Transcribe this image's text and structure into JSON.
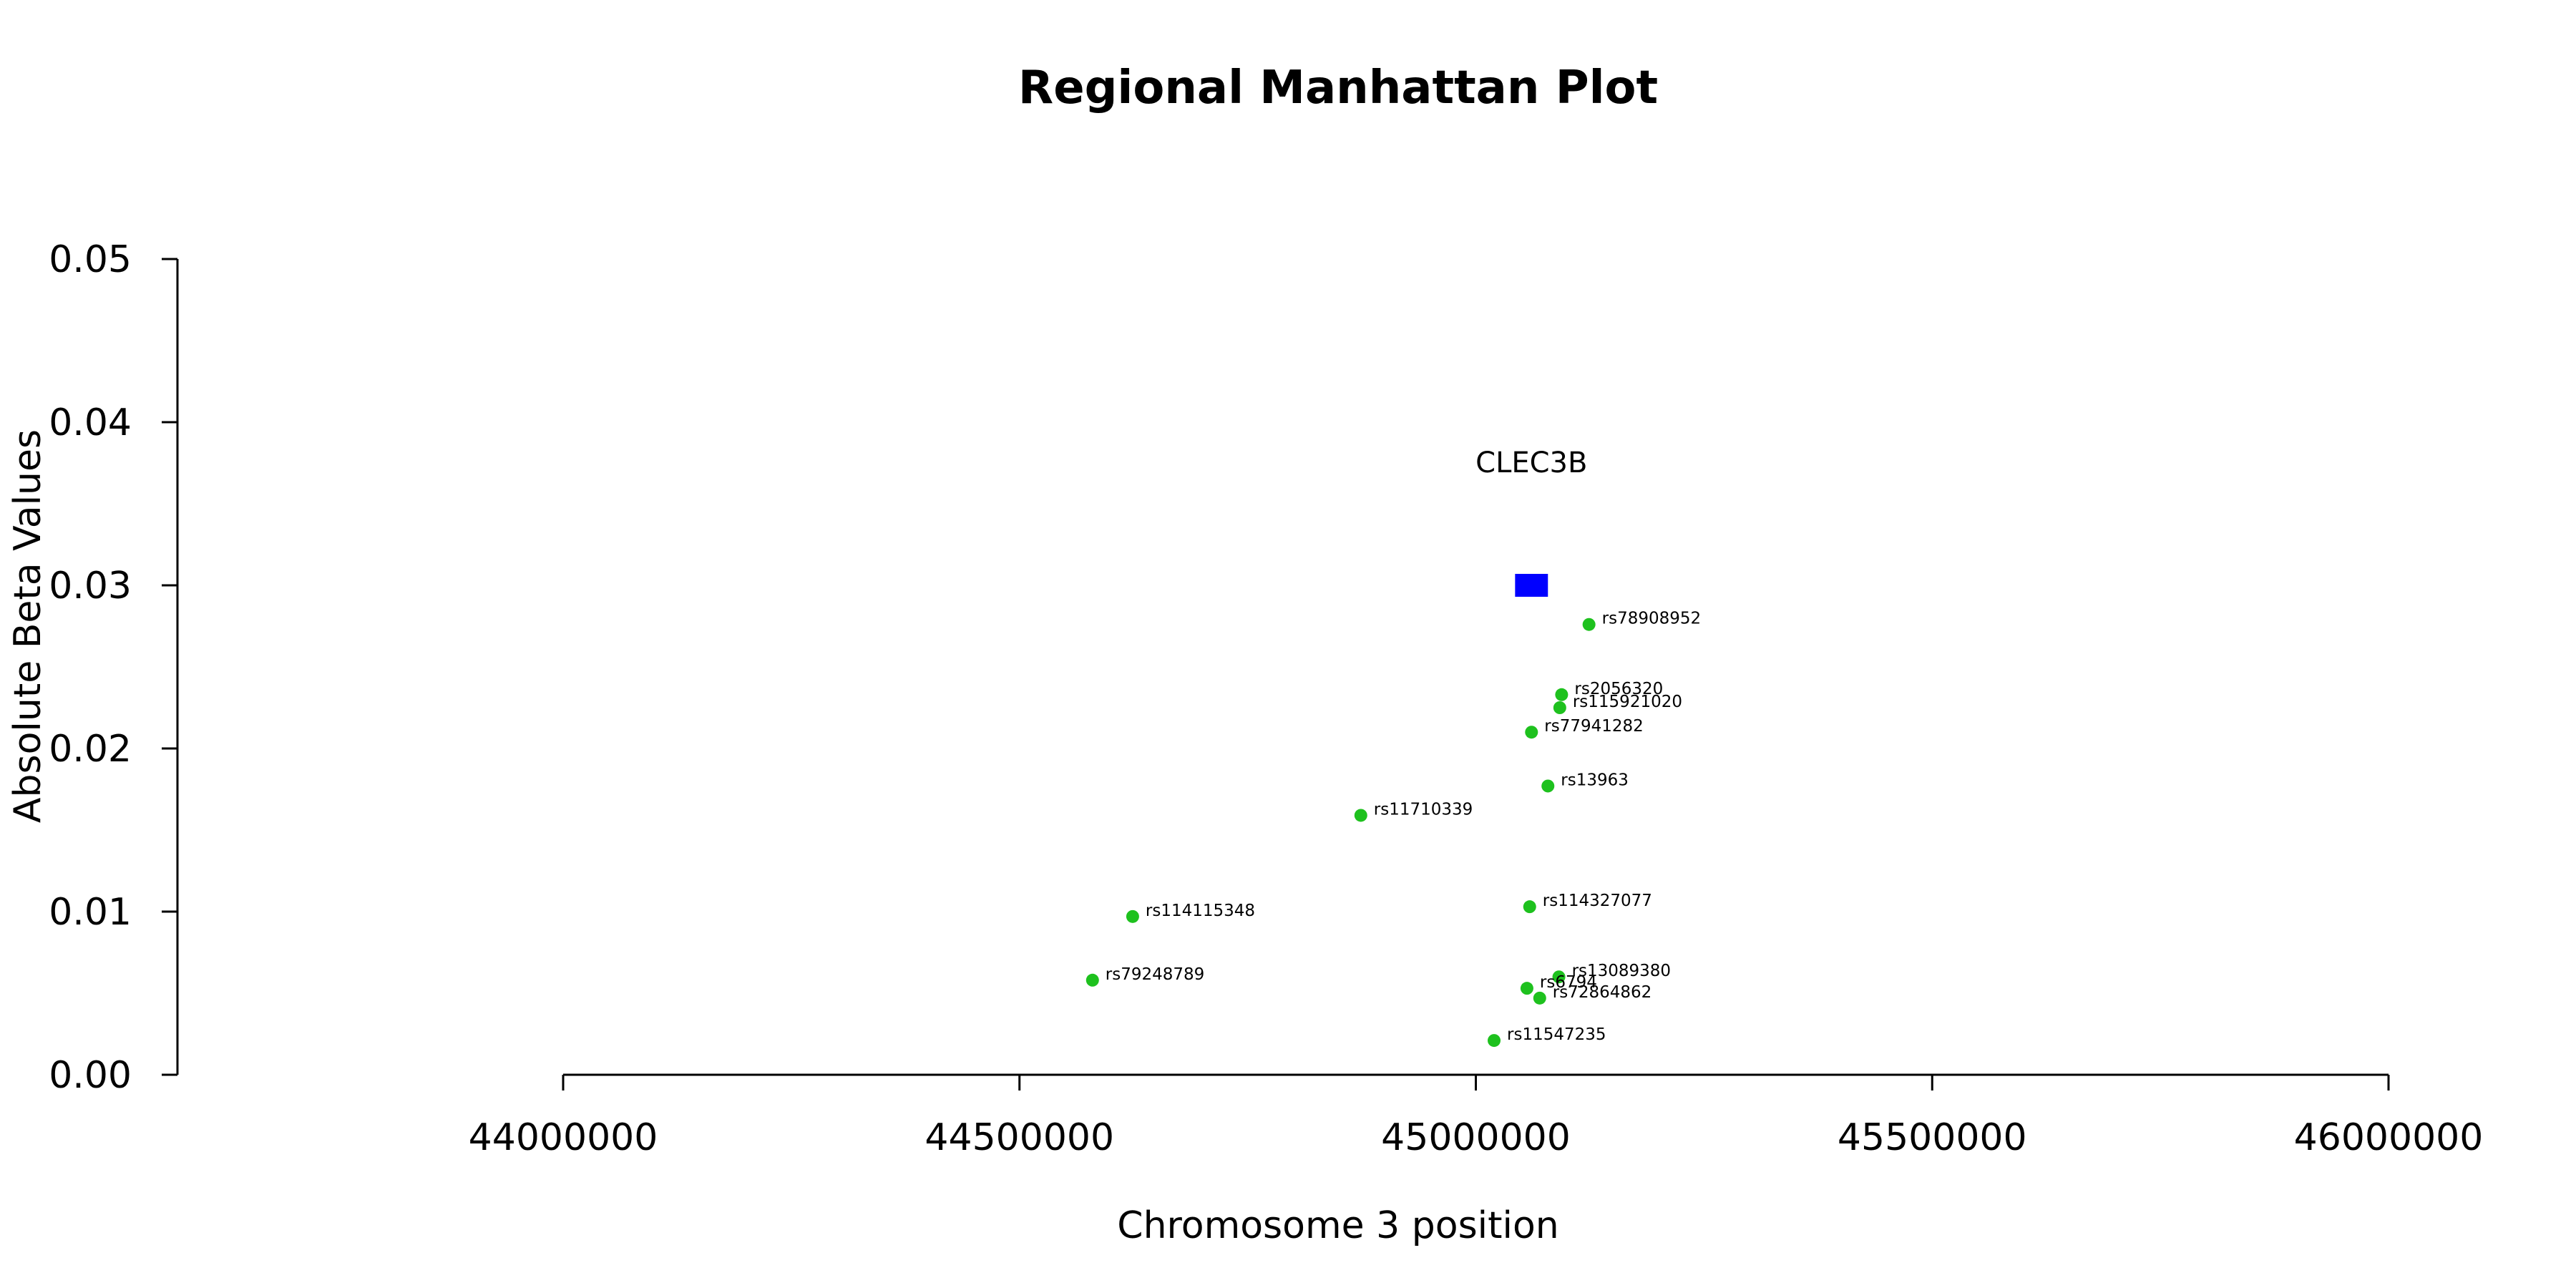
{
  "chart_data": {
    "type": "scatter",
    "title": "Regional Manhattan Plot",
    "xlabel": "Chromosome 3 position",
    "ylabel": "Absolute Beta Values",
    "xlim": [
      44000000,
      46000000
    ],
    "ylim": [
      0,
      0.05
    ],
    "x_ticks": [
      "44000000",
      "44500000",
      "45000000",
      "45500000",
      "46000000"
    ],
    "y_ticks": [
      "0.00",
      "0.01",
      "0.02",
      "0.03",
      "0.04",
      "0.05"
    ],
    "point_color": "#1ec11e",
    "gene_color": "#0000ff",
    "gene": {
      "name": "CLEC3B",
      "start": 45043000,
      "end": 45079000,
      "y": 0.03
    },
    "points": [
      {
        "label": "rs78908952",
        "x": 45124000,
        "y": 0.0276
      },
      {
        "label": "rs2056320",
        "x": 45094000,
        "y": 0.0233
      },
      {
        "label": "rs115921020",
        "x": 45092000,
        "y": 0.0225
      },
      {
        "label": "rs77941282",
        "x": 45061000,
        "y": 0.021
      },
      {
        "label": "rs13963",
        "x": 45079000,
        "y": 0.0177
      },
      {
        "label": "rs11710339",
        "x": 44874000,
        "y": 0.0159
      },
      {
        "label": "rs114115348",
        "x": 44624000,
        "y": 0.0097
      },
      {
        "label": "rs114327077",
        "x": 45059000,
        "y": 0.0103
      },
      {
        "label": "rs79248789",
        "x": 44580000,
        "y": 0.0058
      },
      {
        "label": "rs13089380",
        "x": 45091000,
        "y": 0.006
      },
      {
        "label": "rs6794",
        "x": 45056000,
        "y": 0.0053
      },
      {
        "label": "rs72864862",
        "x": 45070000,
        "y": 0.0047
      },
      {
        "label": "rs11547235",
        "x": 45020000,
        "y": 0.0021
      }
    ]
  }
}
